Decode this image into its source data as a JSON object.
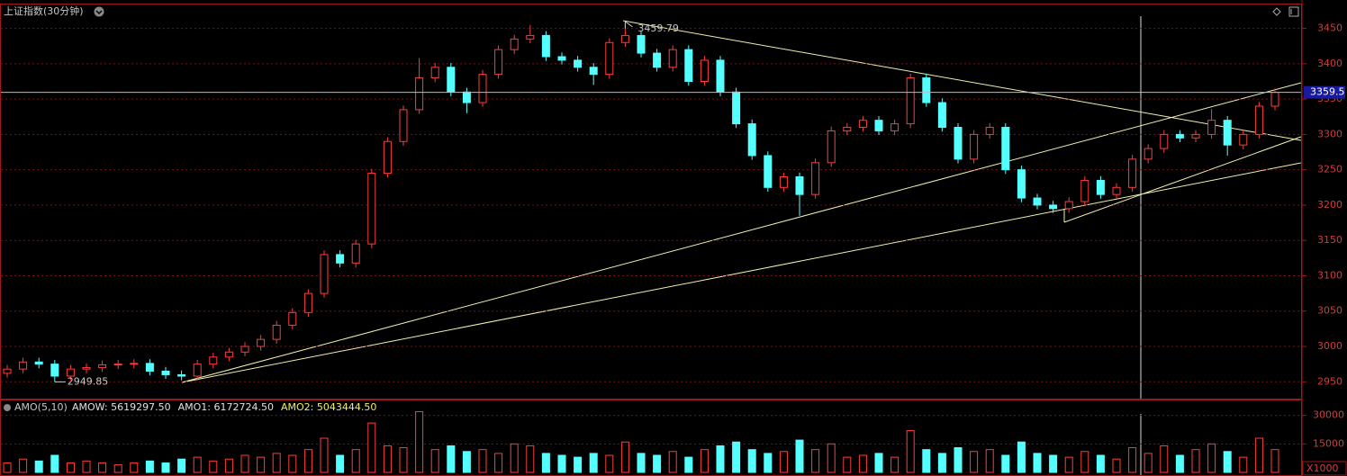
{
  "chart_data": [
    {
      "type": "candlestick",
      "title": "上证指数(30分钟)",
      "open": [
        2962,
        2968,
        2978,
        2975,
        2958,
        2968,
        2970,
        2974,
        2975,
        2976,
        2965,
        2960,
        2958,
        2975,
        2985,
        2992,
        3000,
        3010,
        3030,
        3048,
        3075,
        3130,
        3118,
        3145,
        3245,
        3290,
        3335,
        3380,
        3395,
        3360,
        3345,
        3385,
        3420,
        3435,
        3440,
        3410,
        3405,
        3395,
        3385,
        3430,
        3440,
        3415,
        3395,
        3420,
        3375,
        3405,
        3360,
        3315,
        3270,
        3225,
        3240,
        3215,
        3260,
        3305,
        3310,
        3320,
        3305,
        3315,
        3380,
        3345,
        3310,
        3265,
        3300,
        3310,
        3250,
        3210,
        3200,
        3195,
        3205,
        3235,
        3215,
        3225,
        3265,
        3280,
        3300,
        3295,
        3300,
        3320,
        3285,
        3300,
        3340
      ],
      "high": [
        2974,
        2984,
        2984,
        2981,
        2974,
        2976,
        2980,
        2981,
        2982,
        2982,
        2971,
        2966,
        2981,
        2991,
        2998,
        3006,
        3016,
        3036,
        3054,
        3081,
        3136,
        3136,
        3151,
        3251,
        3296,
        3341,
        3408,
        3401,
        3401,
        3366,
        3391,
        3426,
        3441,
        3455,
        3446,
        3416,
        3411,
        3401,
        3436,
        3459.79,
        3446,
        3421,
        3426,
        3426,
        3411,
        3411,
        3366,
        3321,
        3276,
        3246,
        3246,
        3266,
        3311,
        3316,
        3326,
        3326,
        3321,
        3386,
        3386,
        3351,
        3316,
        3306,
        3316,
        3316,
        3256,
        3216,
        3206,
        3211,
        3241,
        3241,
        3231,
        3271,
        3286,
        3306,
        3306,
        3306,
        3336,
        3326,
        3306,
        3346,
        3365
      ],
      "low": [
        2956,
        2962,
        2969,
        2949.85,
        2952,
        2962,
        2964,
        2968,
        2969,
        2959,
        2954,
        2952,
        2952,
        2969,
        2979,
        2986,
        2994,
        3004,
        3024,
        3042,
        3069,
        3112,
        3112,
        3139,
        3239,
        3284,
        3329,
        3374,
        3354,
        3330,
        3339,
        3379,
        3414,
        3429,
        3404,
        3399,
        3389,
        3370,
        3379,
        3424,
        3409,
        3389,
        3389,
        3369,
        3369,
        3354,
        3309,
        3264,
        3219,
        3219,
        3185,
        3209,
        3254,
        3299,
        3304,
        3299,
        3299,
        3309,
        3339,
        3304,
        3259,
        3259,
        3294,
        3244,
        3204,
        3194,
        3189,
        3189,
        3199,
        3209,
        3209,
        3219,
        3259,
        3274,
        3289,
        3289,
        3294,
        3270,
        3279,
        3294,
        3334
      ],
      "close": [
        2968,
        2978,
        2975,
        2958,
        2968,
        2970,
        2974,
        2975,
        2976,
        2965,
        2960,
        2958,
        2975,
        2985,
        2992,
        3000,
        3010,
        3030,
        3048,
        3075,
        3130,
        3118,
        3145,
        3245,
        3290,
        3335,
        3380,
        3395,
        3360,
        3345,
        3385,
        3420,
        3435,
        3440,
        3410,
        3405,
        3395,
        3385,
        3430,
        3440,
        3415,
        3395,
        3420,
        3375,
        3405,
        3360,
        3315,
        3270,
        3225,
        3240,
        3215,
        3260,
        3305,
        3310,
        3320,
        3305,
        3315,
        3380,
        3345,
        3310,
        3265,
        3300,
        3310,
        3250,
        3210,
        3200,
        3195,
        3205,
        3235,
        3215,
        3225,
        3265,
        3280,
        3300,
        3295,
        3300,
        3320,
        3285,
        3300,
        3340,
        3359.5
      ],
      "last_price": 3359.5,
      "up_color": "#ff3c3c",
      "down_color": "#54ffff",
      "ylim": [
        2930,
        3480
      ],
      "yticks": [
        2950,
        3000,
        3050,
        3100,
        3150,
        3200,
        3250,
        3300,
        3350,
        3400,
        3450
      ],
      "grid": true
    },
    {
      "type": "bar",
      "title": "AMO(5,10)",
      "legend": [
        {
          "name": "AMOW: 5619297.50",
          "color": "#e0e0e0"
        },
        {
          "name": "AMO1: 6172724.50",
          "color": "#e0e0e0"
        },
        {
          "name": "AMO2: 5043444.50",
          "color": "#f0f060"
        }
      ],
      "unit": "X1000",
      "values": [
        5000,
        7000,
        6000,
        9000,
        5000,
        6000,
        5000,
        4000,
        5000,
        6000,
        5000,
        7000,
        8000,
        6000,
        7000,
        9000,
        8000,
        10000,
        9000,
        12000,
        18000,
        9000,
        12000,
        26000,
        14000,
        13000,
        32000,
        12000,
        14000,
        11000,
        12000,
        10000,
        15000,
        14000,
        10000,
        9000,
        8000,
        10000,
        9000,
        16000,
        10000,
        9000,
        11000,
        8000,
        12000,
        14000,
        16000,
        12000,
        10000,
        11000,
        17000,
        12000,
        15000,
        8000,
        9000,
        10000,
        8000,
        22000,
        12000,
        10000,
        13000,
        11000,
        12000,
        9000,
        16000,
        10000,
        9000,
        8000,
        11000,
        9000,
        7000,
        13000,
        10000,
        14000,
        9000,
        12000,
        15000,
        11000,
        8000,
        18000,
        12000
      ],
      "ylim": [
        0,
        36000
      ],
      "yticks": [
        15000,
        30000
      ],
      "grid": true
    }
  ]
}
